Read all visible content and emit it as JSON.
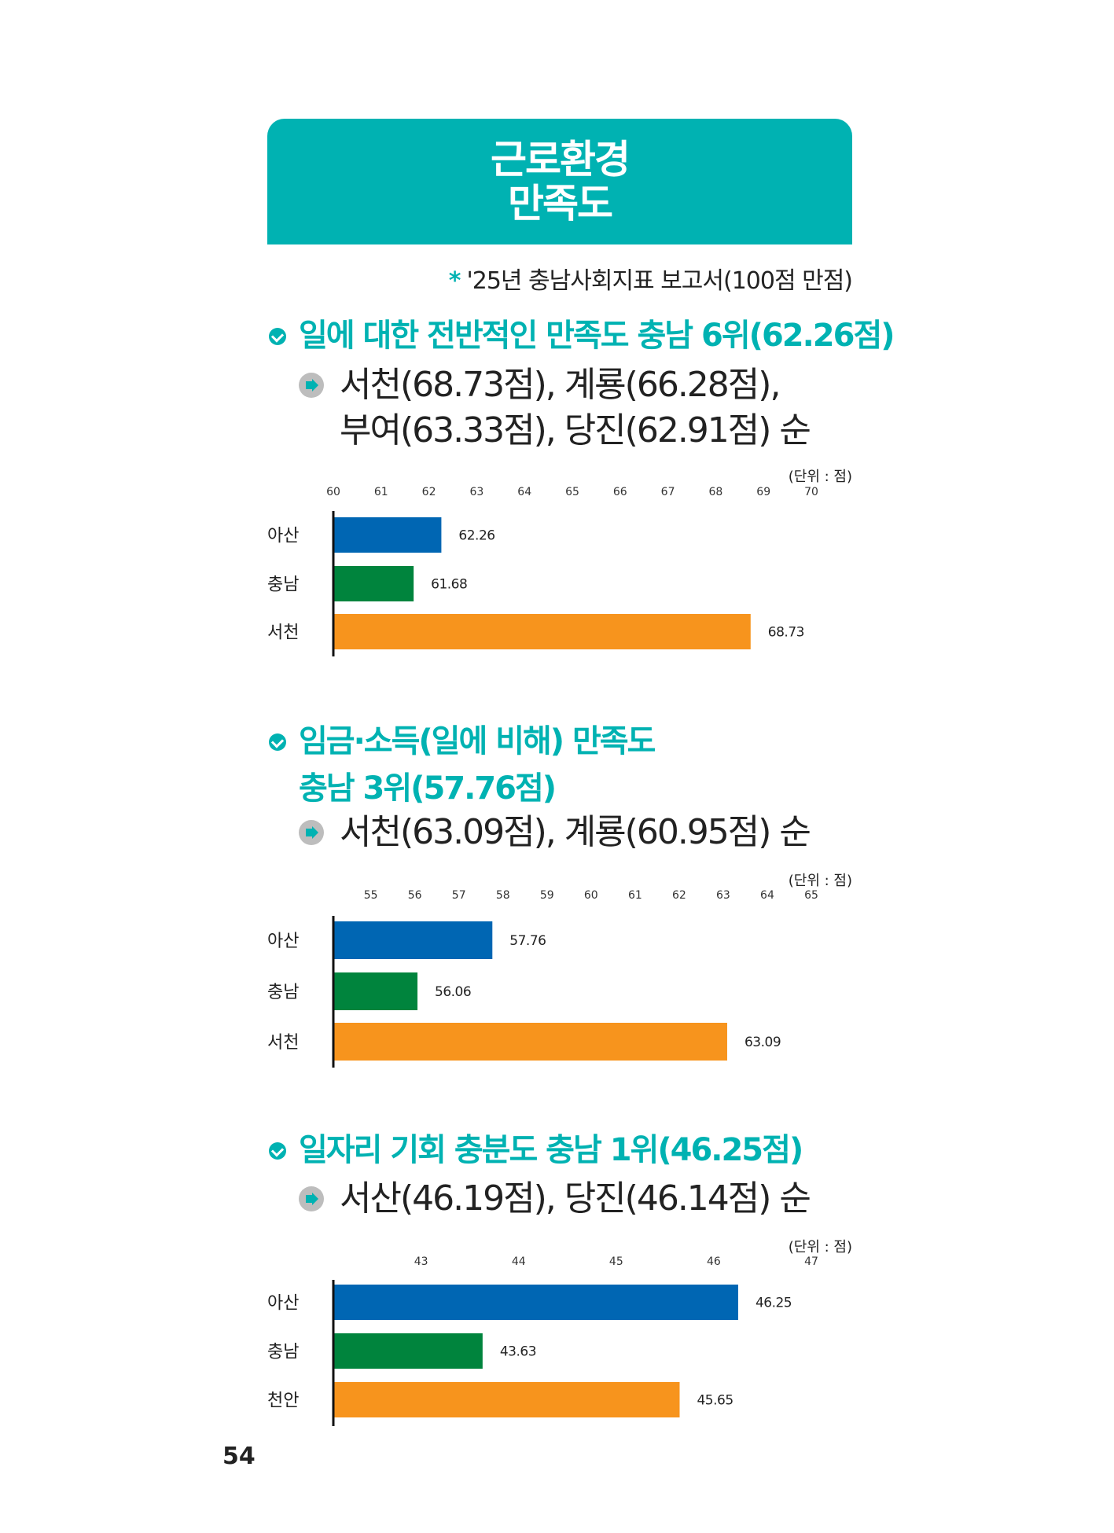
{
  "banner": {
    "line1": "근로환경",
    "line2": "만족도"
  },
  "source": {
    "text": "'25년 충남사회지표 보고서(100점 만점)",
    "marker": "*"
  },
  "sections": [
    {
      "heading_lines": [
        "일에 대한 전반적인 만족도 충남 6위(62.26점)"
      ],
      "sub_lines": [
        "서천(68.73점), 계룡(66.28점),",
        "부여(63.33점), 당진(62.91점) 순"
      ]
    },
    {
      "heading_lines": [
        "임금·소득(일에 비해) 만족도",
        "충남 3위(57.76점)"
      ],
      "sub_lines": [
        "서천(63.09점), 계룡(60.95점) 순"
      ]
    },
    {
      "heading_lines": [
        "일자리 기회 충분도 충남 1위(46.25점)"
      ],
      "sub_lines": [
        "서산(46.19점), 당진(46.14점) 순"
      ]
    }
  ],
  "unit_label": "(단위 : 점)",
  "page_number": "54",
  "colors": {
    "teal": "#00b2b2",
    "blue": "#0066b3",
    "green": "#00843d",
    "orange": "#f7941d"
  },
  "chart_data": [
    {
      "type": "bar",
      "orientation": "horizontal",
      "categories": [
        "아산",
        "충남",
        "서천"
      ],
      "values": [
        62.26,
        61.68,
        68.73
      ],
      "value_labels": [
        "62.26",
        "61.68",
        "68.73"
      ],
      "xlim": [
        60,
        70
      ],
      "ticks": [
        60,
        61,
        62,
        63,
        64,
        65,
        66,
        67,
        68,
        69,
        70
      ],
      "bar_colors": [
        "#0066b3",
        "#00843d",
        "#f7941d"
      ]
    },
    {
      "type": "bar",
      "orientation": "horizontal",
      "categories": [
        "아산",
        "충남",
        "서천"
      ],
      "values": [
        57.76,
        56.06,
        63.09
      ],
      "value_labels": [
        "57.76",
        "56.06",
        "63.09"
      ],
      "xlim": [
        54.15,
        65
      ],
      "ticks": [
        55,
        56,
        57,
        58,
        59,
        60,
        61,
        62,
        63,
        64,
        65
      ],
      "bar_colors": [
        "#0066b3",
        "#00843d",
        "#f7941d"
      ]
    },
    {
      "type": "bar",
      "orientation": "horizontal",
      "categories": [
        "아산",
        "충남",
        "천안"
      ],
      "values": [
        46.25,
        43.63,
        45.65
      ],
      "value_labels": [
        "46.25",
        "43.63",
        "45.65"
      ],
      "xlim": [
        42.1,
        47
      ],
      "ticks": [
        43,
        44,
        45,
        46,
        47
      ],
      "bar_colors": [
        "#0066b3",
        "#00843d",
        "#f7941d"
      ]
    }
  ]
}
